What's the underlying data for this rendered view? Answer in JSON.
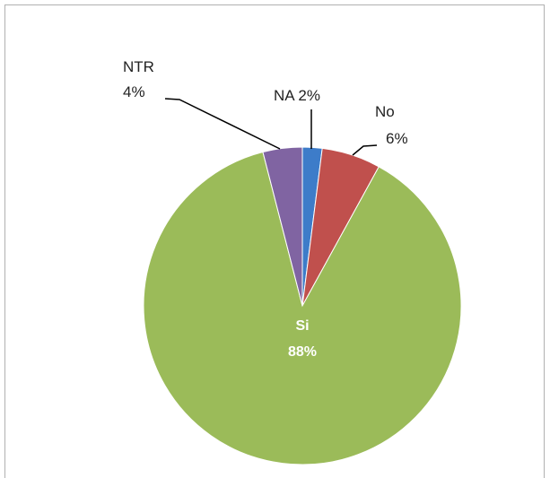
{
  "chart_data": {
    "type": "pie",
    "categories": [
      "NA",
      "No",
      "Si",
      "NTR"
    ],
    "values": [
      2,
      6,
      88,
      4
    ],
    "value_labels": [
      "2%",
      "6%",
      "88%",
      "4%"
    ],
    "colors": [
      "#3d7cc9",
      "#c0504d",
      "#9bbb59",
      "#8064a2"
    ]
  }
}
